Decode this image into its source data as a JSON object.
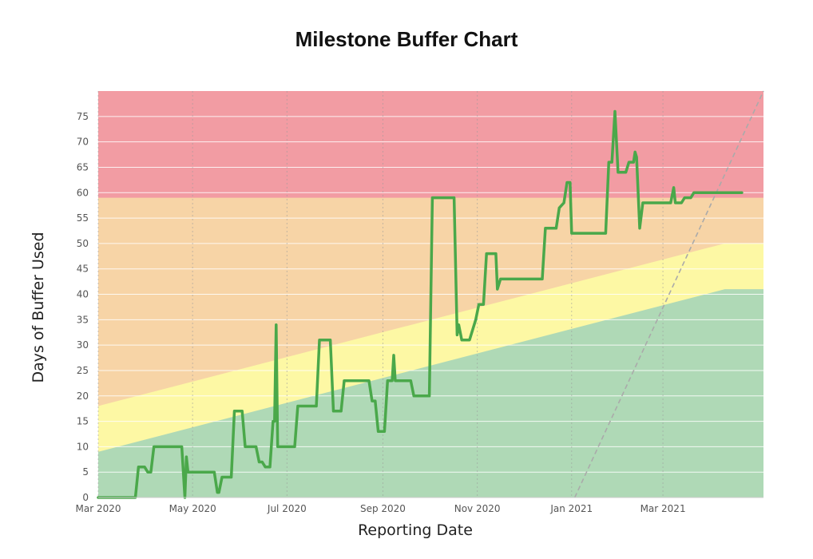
{
  "chart_data": {
    "type": "line",
    "title": "Milestone Buffer Chart",
    "xlabel": "Reporting Date",
    "ylabel": "Days of Buffer Used",
    "x_range": [
      "2020-03-01",
      "2021-05-05"
    ],
    "ylim": [
      0,
      80
    ],
    "y_ticks": [
      0,
      5,
      10,
      15,
      20,
      25,
      30,
      35,
      40,
      45,
      50,
      55,
      60,
      65,
      70,
      75
    ],
    "x_ticks": [
      {
        "date": "2020-03-01",
        "label": "Mar 2020"
      },
      {
        "date": "2020-05-01",
        "label": "May 2020"
      },
      {
        "date": "2020-07-01",
        "label": "Jul 2020"
      },
      {
        "date": "2020-09-01",
        "label": "Sep 2020"
      },
      {
        "date": "2020-11-01",
        "label": "Nov 2020"
      },
      {
        "date": "2021-01-01",
        "label": "Jan 2021"
      },
      {
        "date": "2021-03-01",
        "label": "Mar 2021"
      }
    ],
    "grid": true,
    "colors": {
      "red_zone": "#f29ca3",
      "orange_zone": "#f7d4a6",
      "yellow_zone": "#fdf8a4",
      "green_zone": "#afd9b6",
      "line": "#4aa84a",
      "trend": "#aaaaaa"
    },
    "zones": {
      "red": {
        "from": 59,
        "to": 80
      },
      "orange_lower": [
        {
          "x": "2020-03-01",
          "y": 18
        },
        {
          "x": "2021-04-10",
          "y": 50
        },
        {
          "x": "2021-05-05",
          "y": 50
        }
      ],
      "yellow_lower": [
        {
          "x": "2020-03-01",
          "y": 9
        },
        {
          "x": "2021-04-10",
          "y": 41
        },
        {
          "x": "2021-05-05",
          "y": 41
        }
      ]
    },
    "trend_line": [
      {
        "x": "2021-01-03",
        "y": 0
      },
      {
        "x": "2021-05-05",
        "y": 80
      }
    ],
    "series": [
      {
        "points": [
          {
            "x": "2020-03-01",
            "y": 0
          },
          {
            "x": "2020-03-25",
            "y": 0
          },
          {
            "x": "2020-03-27",
            "y": 6
          },
          {
            "x": "2020-03-31",
            "y": 6
          },
          {
            "x": "2020-04-02",
            "y": 5
          },
          {
            "x": "2020-04-04",
            "y": 5
          },
          {
            "x": "2020-04-06",
            "y": 10
          },
          {
            "x": "2020-04-24",
            "y": 10
          },
          {
            "x": "2020-04-26",
            "y": 0
          },
          {
            "x": "2020-04-27",
            "y": 8
          },
          {
            "x": "2020-04-28",
            "y": 5
          },
          {
            "x": "2020-05-15",
            "y": 5
          },
          {
            "x": "2020-05-17",
            "y": 1
          },
          {
            "x": "2020-05-18",
            "y": 1
          },
          {
            "x": "2020-05-20",
            "y": 4
          },
          {
            "x": "2020-05-26",
            "y": 4
          },
          {
            "x": "2020-05-28",
            "y": 17
          },
          {
            "x": "2020-06-02",
            "y": 17
          },
          {
            "x": "2020-06-04",
            "y": 10
          },
          {
            "x": "2020-06-11",
            "y": 10
          },
          {
            "x": "2020-06-13",
            "y": 7
          },
          {
            "x": "2020-06-15",
            "y": 7
          },
          {
            "x": "2020-06-17",
            "y": 6
          },
          {
            "x": "2020-06-20",
            "y": 6
          },
          {
            "x": "2020-06-22",
            "y": 15
          },
          {
            "x": "2020-06-23",
            "y": 15
          },
          {
            "x": "2020-06-24",
            "y": 34
          },
          {
            "x": "2020-06-25",
            "y": 10
          },
          {
            "x": "2020-07-06",
            "y": 10
          },
          {
            "x": "2020-07-08",
            "y": 18
          },
          {
            "x": "2020-07-20",
            "y": 18
          },
          {
            "x": "2020-07-22",
            "y": 31
          },
          {
            "x": "2020-07-29",
            "y": 31
          },
          {
            "x": "2020-07-31",
            "y": 17
          },
          {
            "x": "2020-08-05",
            "y": 17
          },
          {
            "x": "2020-08-07",
            "y": 23
          },
          {
            "x": "2020-08-23",
            "y": 23
          },
          {
            "x": "2020-08-25",
            "y": 19
          },
          {
            "x": "2020-08-27",
            "y": 19
          },
          {
            "x": "2020-08-29",
            "y": 13
          },
          {
            "x": "2020-09-02",
            "y": 13
          },
          {
            "x": "2020-09-04",
            "y": 23
          },
          {
            "x": "2020-09-07",
            "y": 23
          },
          {
            "x": "2020-09-08",
            "y": 28
          },
          {
            "x": "2020-09-09",
            "y": 23
          },
          {
            "x": "2020-09-19",
            "y": 23
          },
          {
            "x": "2020-09-21",
            "y": 20
          },
          {
            "x": "2020-10-01",
            "y": 20
          },
          {
            "x": "2020-10-03",
            "y": 59
          },
          {
            "x": "2020-10-17",
            "y": 59
          },
          {
            "x": "2020-10-19",
            "y": 32
          },
          {
            "x": "2020-10-20",
            "y": 34
          },
          {
            "x": "2020-10-22",
            "y": 31
          },
          {
            "x": "2020-10-27",
            "y": 31
          },
          {
            "x": "2020-10-29",
            "y": 33
          },
          {
            "x": "2020-10-31",
            "y": 35
          },
          {
            "x": "2020-11-02",
            "y": 38
          },
          {
            "x": "2020-11-05",
            "y": 38
          },
          {
            "x": "2020-11-07",
            "y": 48
          },
          {
            "x": "2020-11-13",
            "y": 48
          },
          {
            "x": "2020-11-14",
            "y": 41
          },
          {
            "x": "2020-11-16",
            "y": 43
          },
          {
            "x": "2020-12-13",
            "y": 43
          },
          {
            "x": "2020-12-15",
            "y": 53
          },
          {
            "x": "2020-12-22",
            "y": 53
          },
          {
            "x": "2020-12-24",
            "y": 57
          },
          {
            "x": "2020-12-27",
            "y": 58
          },
          {
            "x": "2020-12-29",
            "y": 62
          },
          {
            "x": "2020-12-31",
            "y": 62
          },
          {
            "x": "2021-01-01",
            "y": 52
          },
          {
            "x": "2021-01-23",
            "y": 52
          },
          {
            "x": "2021-01-25",
            "y": 66
          },
          {
            "x": "2021-01-27",
            "y": 66
          },
          {
            "x": "2021-01-29",
            "y": 76
          },
          {
            "x": "2021-01-31",
            "y": 64
          },
          {
            "x": "2021-02-05",
            "y": 64
          },
          {
            "x": "2021-02-07",
            "y": 66
          },
          {
            "x": "2021-02-10",
            "y": 66
          },
          {
            "x": "2021-02-11",
            "y": 68
          },
          {
            "x": "2021-02-12",
            "y": 67
          },
          {
            "x": "2021-02-14",
            "y": 53
          },
          {
            "x": "2021-02-16",
            "y": 58
          },
          {
            "x": "2021-03-06",
            "y": 58
          },
          {
            "x": "2021-03-08",
            "y": 61
          },
          {
            "x": "2021-03-09",
            "y": 58
          },
          {
            "x": "2021-03-13",
            "y": 58
          },
          {
            "x": "2021-03-15",
            "y": 59
          },
          {
            "x": "2021-03-19",
            "y": 59
          },
          {
            "x": "2021-03-21",
            "y": 60
          },
          {
            "x": "2021-04-21",
            "y": 60
          }
        ]
      }
    ]
  }
}
